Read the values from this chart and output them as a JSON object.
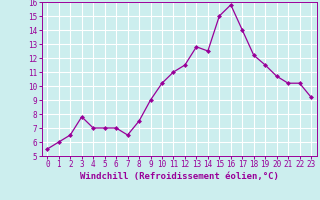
{
  "x": [
    0,
    1,
    2,
    3,
    4,
    5,
    6,
    7,
    8,
    9,
    10,
    11,
    12,
    13,
    14,
    15,
    16,
    17,
    18,
    19,
    20,
    21,
    22,
    23
  ],
  "y": [
    5.5,
    6.0,
    6.5,
    7.8,
    7.0,
    7.0,
    7.0,
    6.5,
    7.5,
    9.0,
    10.2,
    11.0,
    11.5,
    12.8,
    12.5,
    15.0,
    15.8,
    14.0,
    12.2,
    11.5,
    10.7,
    10.2,
    10.2,
    9.2
  ],
  "line_color": "#990099",
  "marker": "D",
  "marker_size": 2,
  "bg_color": "#cceeee",
  "grid_color": "#ffffff",
  "xlabel": "Windchill (Refroidissement éolien,°C)",
  "xlabel_color": "#990099",
  "tick_color": "#990099",
  "ylim": [
    5,
    16
  ],
  "xlim": [
    -0.5,
    23.5
  ],
  "yticks": [
    5,
    6,
    7,
    8,
    9,
    10,
    11,
    12,
    13,
    14,
    15,
    16
  ],
  "xticks": [
    0,
    1,
    2,
    3,
    4,
    5,
    6,
    7,
    8,
    9,
    10,
    11,
    12,
    13,
    14,
    15,
    16,
    17,
    18,
    19,
    20,
    21,
    22,
    23
  ],
  "tick_fontsize": 5.5,
  "xlabel_fontsize": 6.5,
  "linewidth": 0.9
}
